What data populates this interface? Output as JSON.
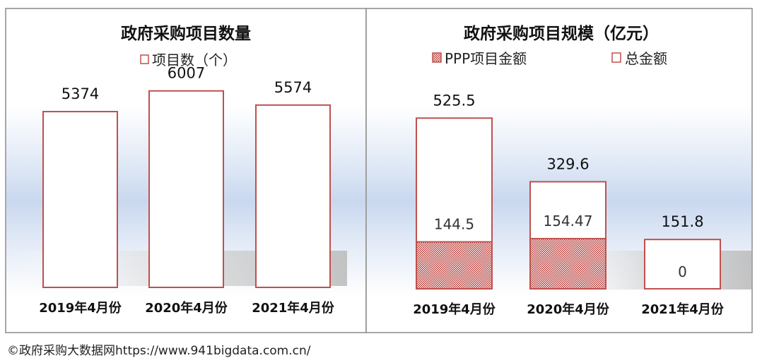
{
  "footer_text": "©政府采购大数据网https://www.941bigdata.com.cn/",
  "colors": {
    "bar_border": "#c0504d",
    "hatch": "#b0302c",
    "frame": "#8a8a8a",
    "title": "#111111",
    "label": "#111111",
    "inner_label": "#333333",
    "band": "#c5d5ee"
  },
  "chart_data": [
    {
      "type": "bar",
      "title": "政府采购项目数量",
      "legend": [
        {
          "label": "项目数（个）",
          "pattern": "none"
        }
      ],
      "categories": [
        "2019年4月份",
        "2020年4月份",
        "2021年4月份"
      ],
      "series": [
        {
          "name": "项目数（个）",
          "values": [
            5374,
            6007,
            5574
          ]
        }
      ],
      "value_labels": [
        "5374",
        "6007",
        "5574"
      ],
      "ylim": [
        0,
        6800
      ],
      "xlabel": "",
      "ylabel": ""
    },
    {
      "type": "bar",
      "title": "政府采购项目规模（亿元）",
      "legend": [
        {
          "label": "PPP项目金额",
          "pattern": "hatch"
        },
        {
          "label": "总金额",
          "pattern": "none"
        }
      ],
      "categories": [
        "2019年4月份",
        "2020年4月份",
        "2021年4月份"
      ],
      "series": [
        {
          "name": "PPP项目金额",
          "values": [
            144.5,
            154.47,
            0
          ]
        },
        {
          "name": "总金额",
          "values": [
            525.5,
            329.6,
            151.8
          ]
        }
      ],
      "value_labels": [
        "525.5",
        "329.6",
        "151.8"
      ],
      "inner_labels": [
        "144.5",
        "154.47",
        "0"
      ],
      "ylim": [
        0,
        600
      ],
      "xlabel": "",
      "ylabel": ""
    }
  ]
}
